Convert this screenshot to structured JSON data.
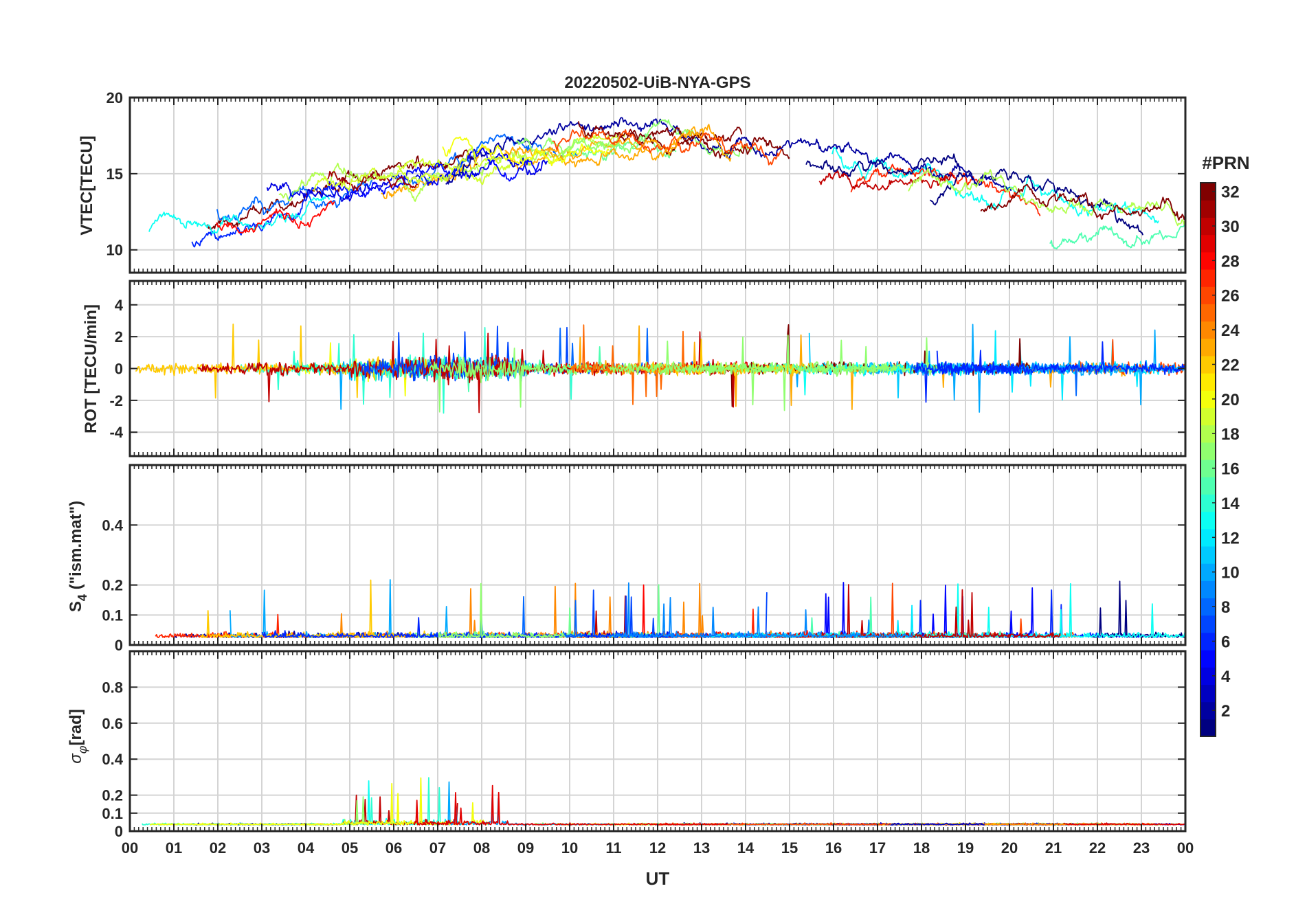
{
  "chart_data": {
    "type": "line",
    "title": "20220502-UiB-NYA-GPS",
    "xlabel": "UT",
    "x_tick_labels": [
      "00",
      "01",
      "02",
      "03",
      "04",
      "05",
      "06",
      "07",
      "08",
      "09",
      "10",
      "11",
      "12",
      "13",
      "14",
      "15",
      "16",
      "17",
      "18",
      "19",
      "20",
      "21",
      "22",
      "23",
      "00"
    ],
    "xlim_hours": [
      0,
      24
    ],
    "grid": true,
    "colorbar": {
      "title": "#PRN",
      "range": [
        1,
        32
      ],
      "tick_labels": [
        "2",
        "4",
        "6",
        "8",
        "10",
        "12",
        "14",
        "16",
        "18",
        "20",
        "22",
        "24",
        "26",
        "28",
        "30",
        "32"
      ],
      "colormap": "jet",
      "placement": "right"
    },
    "panels": [
      {
        "id": "vtec",
        "ylabel": "VTEC[TECU]",
        "ylim": [
          8.5,
          20
        ],
        "y_ticks": [
          10,
          15,
          20
        ],
        "y_tick_labels": [
          "10",
          "15",
          "20"
        ],
        "seed": 11
      },
      {
        "id": "rot",
        "ylabel": "ROT [TECU/min]",
        "ylim": [
          -5.5,
          5.5
        ],
        "y_ticks": [
          -4,
          -2,
          0,
          2,
          4
        ],
        "y_tick_labels": [
          "-4",
          "-2",
          "0",
          "2",
          "4"
        ],
        "seed": 23
      },
      {
        "id": "s4",
        "ylabel": "S4 (\"ism.mat\")",
        "ylim": [
          0,
          0.6
        ],
        "y_ticks": [
          0,
          0.1,
          0.2,
          0.4
        ],
        "y_tick_labels": [
          "0",
          "0.1",
          "0.2",
          "0.4"
        ],
        "seed": 37
      },
      {
        "id": "sigma",
        "ylabel": "σφ[rad]",
        "ylim": [
          0,
          1
        ],
        "y_ticks": [
          0,
          0.1,
          0.2,
          0.4,
          0.6,
          0.8
        ],
        "y_tick_labels": [
          "0",
          "0.1",
          "0.2",
          "0.4",
          "0.6",
          "0.8"
        ],
        "seed": 53
      }
    ]
  }
}
